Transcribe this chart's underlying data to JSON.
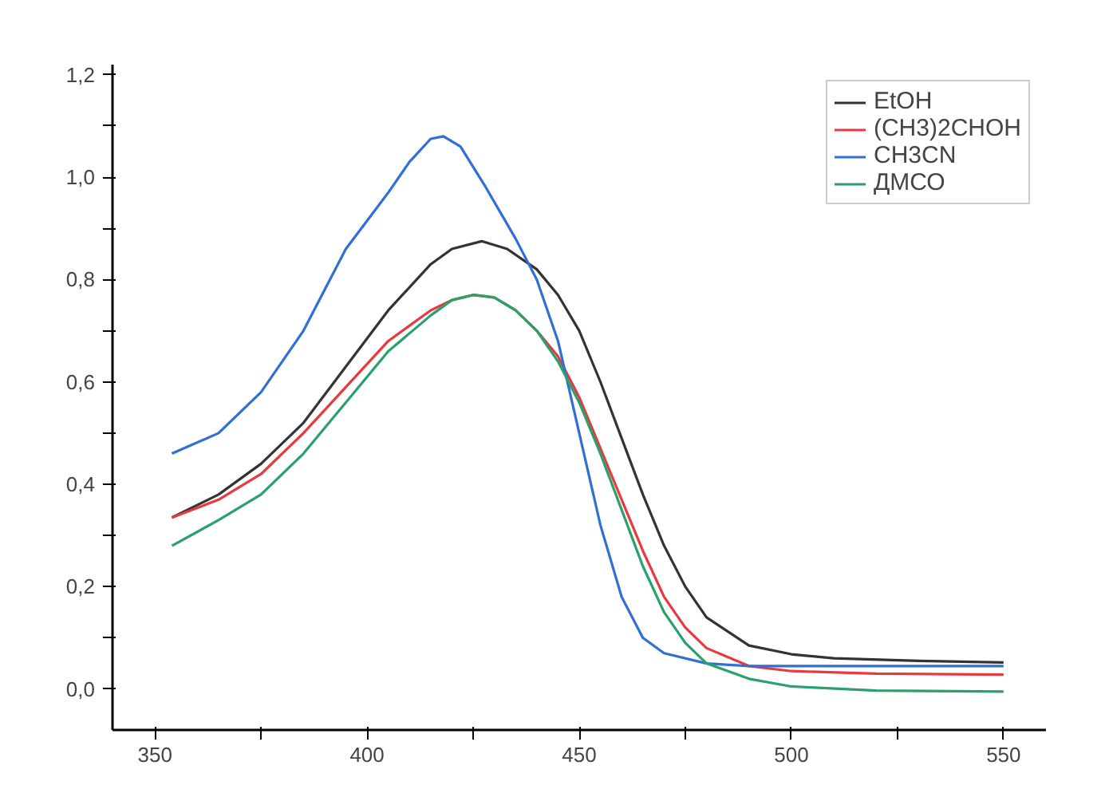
{
  "chart_data": {
    "type": "line",
    "xlim": [
      340,
      560
    ],
    "ylim": [
      -0.08,
      1.22
    ],
    "xticks": [
      350,
      {
        "value": 375,
        "label": null
      },
      400,
      {
        "value": 425,
        "label": null
      },
      450,
      {
        "value": 475,
        "label": null
      },
      500,
      {
        "value": 525,
        "label": null
      },
      550
    ],
    "yticks": [
      {
        "value": 0.0,
        "label": "0,0"
      },
      {
        "value": 0.1,
        "label": null
      },
      {
        "value": 0.2,
        "label": "0,2"
      },
      {
        "value": 0.3,
        "label": null
      },
      {
        "value": 0.4,
        "label": "0,4"
      },
      {
        "value": 0.5,
        "label": null
      },
      {
        "value": 0.6,
        "label": "0,6"
      },
      {
        "value": 0.7,
        "label": null
      },
      {
        "value": 0.8,
        "label": "0,8"
      },
      {
        "value": 0.9,
        "label": null
      },
      {
        "value": 1.0,
        "label": "1,0"
      },
      {
        "value": 1.1,
        "label": null
      },
      {
        "value": 1.2,
        "label": "1,2"
      }
    ],
    "grid": false,
    "legend": "top right",
    "line_style": "solid",
    "marker": "none",
    "series": [
      {
        "name": "EtOH",
        "color": "#333333",
        "x": [
          354,
          365,
          375,
          385,
          395,
          405,
          415,
          420,
          427,
          433,
          440,
          445,
          450,
          455,
          460,
          465,
          470,
          475,
          480,
          490,
          500,
          510,
          530,
          550
        ],
        "values": [
          0.335,
          0.38,
          0.44,
          0.52,
          0.63,
          0.74,
          0.83,
          0.86,
          0.875,
          0.86,
          0.82,
          0.77,
          0.7,
          0.6,
          0.49,
          0.38,
          0.28,
          0.2,
          0.14,
          0.085,
          0.068,
          0.06,
          0.055,
          0.052
        ]
      },
      {
        "name": "(CH3)2CHOH",
        "color": "#e8393f",
        "x": [
          354,
          365,
          375,
          385,
          395,
          405,
          415,
          420,
          425,
          430,
          435,
          440,
          445,
          450,
          455,
          460,
          465,
          470,
          475,
          480,
          490,
          500,
          520,
          550
        ],
        "values": [
          0.335,
          0.37,
          0.42,
          0.5,
          0.59,
          0.68,
          0.74,
          0.76,
          0.77,
          0.765,
          0.74,
          0.7,
          0.65,
          0.57,
          0.47,
          0.37,
          0.27,
          0.18,
          0.12,
          0.08,
          0.045,
          0.035,
          0.03,
          0.028
        ]
      },
      {
        "name": "CH3CN",
        "color": "#2f6fd6",
        "x": [
          354,
          365,
          375,
          385,
          395,
          405,
          410,
          415,
          418,
          422,
          428,
          435,
          440,
          445,
          450,
          455,
          460,
          465,
          470,
          480,
          490,
          500,
          550
        ],
        "values": [
          0.46,
          0.5,
          0.58,
          0.7,
          0.86,
          0.97,
          1.03,
          1.075,
          1.08,
          1.06,
          0.98,
          0.88,
          0.8,
          0.68,
          0.5,
          0.32,
          0.18,
          0.1,
          0.07,
          0.05,
          0.045,
          0.045,
          0.045
        ]
      },
      {
        "name": "ДМСО",
        "color": "#2aa06a",
        "x": [
          354,
          365,
          375,
          385,
          395,
          405,
          415,
          420,
          425,
          430,
          435,
          440,
          445,
          450,
          455,
          460,
          465,
          470,
          475,
          480,
          490,
          500,
          520,
          550
        ],
        "values": [
          0.28,
          0.33,
          0.38,
          0.46,
          0.56,
          0.66,
          0.73,
          0.76,
          0.77,
          0.765,
          0.74,
          0.7,
          0.64,
          0.56,
          0.46,
          0.35,
          0.24,
          0.15,
          0.09,
          0.05,
          0.02,
          0.005,
          -0.003,
          -0.005
        ]
      }
    ]
  }
}
